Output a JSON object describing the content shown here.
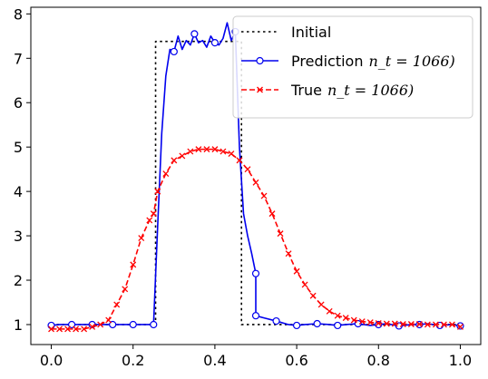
{
  "chart_data": {
    "type": "line",
    "xlim": [
      -0.05,
      1.05
    ],
    "ylim": [
      0.55,
      8.15
    ],
    "x_ticks": [
      0.0,
      0.2,
      0.4,
      0.6,
      0.8,
      1.0
    ],
    "x_tick_labels": [
      "0.0",
      "0.2",
      "0.4",
      "0.6",
      "0.8",
      "1.0"
    ],
    "y_ticks": [
      1,
      2,
      3,
      4,
      5,
      6,
      7,
      8
    ],
    "y_tick_labels": [
      "1",
      "2",
      "3",
      "4",
      "5",
      "6",
      "7",
      "8"
    ],
    "grid": false,
    "legend_position": "top-right",
    "series": [
      {
        "name": "Initial",
        "style": "dotted",
        "color": "#000000",
        "marker": "none",
        "x": [
          0.0,
          0.255,
          0.255,
          0.465,
          0.465,
          1.0
        ],
        "y": [
          1.0,
          1.0,
          7.38,
          7.38,
          1.0,
          1.0
        ]
      },
      {
        "name": "Prediction",
        "name_math": "n_t = 1066)",
        "style": "solid",
        "color": "#0000ee",
        "marker": "circle",
        "x": [
          0.0,
          0.02,
          0.05,
          0.08,
          0.1,
          0.13,
          0.15,
          0.18,
          0.2,
          0.22,
          0.25,
          0.26,
          0.27,
          0.28,
          0.29,
          0.3,
          0.31,
          0.32,
          0.33,
          0.34,
          0.35,
          0.36,
          0.37,
          0.38,
          0.39,
          0.4,
          0.41,
          0.42,
          0.43,
          0.44,
          0.45,
          0.46,
          0.47,
          0.48,
          0.49,
          0.5,
          0.5,
          0.52,
          0.55,
          0.58,
          0.6,
          0.62,
          0.65,
          0.68,
          0.7,
          0.72,
          0.75,
          0.78,
          0.8,
          0.82,
          0.85,
          0.88,
          0.9,
          0.92,
          0.95,
          0.98,
          1.0
        ],
        "y": [
          0.98,
          1.0,
          1.0,
          1.0,
          1.0,
          1.0,
          1.0,
          1.0,
          1.0,
          1.0,
          1.0,
          3.2,
          5.3,
          6.6,
          7.2,
          7.15,
          7.5,
          7.2,
          7.4,
          7.3,
          7.55,
          7.35,
          7.4,
          7.25,
          7.5,
          7.35,
          7.3,
          7.45,
          7.8,
          7.4,
          7.6,
          5.0,
          3.5,
          3.0,
          2.6,
          2.15,
          1.2,
          1.15,
          1.08,
          1.0,
          0.98,
          1.0,
          1.02,
          1.0,
          0.98,
          1.0,
          1.02,
          0.98,
          1.0,
          1.02,
          0.97,
          1.0,
          1.0,
          1.02,
          0.98,
          1.0,
          0.97
        ],
        "markers_at": [
          0.0,
          0.05,
          0.1,
          0.15,
          0.2,
          0.25,
          0.3,
          0.35,
          0.4,
          0.45,
          0.5,
          0.55,
          0.6,
          0.65,
          0.7,
          0.75,
          0.8,
          0.85,
          0.9,
          0.95,
          1.0
        ]
      },
      {
        "name": "True",
        "name_math": "n_t = 1066)",
        "style": "dashed",
        "color": "#ff0000",
        "marker": "x",
        "x": [
          0.0,
          0.02,
          0.04,
          0.06,
          0.08,
          0.1,
          0.12,
          0.14,
          0.16,
          0.18,
          0.2,
          0.22,
          0.24,
          0.25,
          0.26,
          0.28,
          0.3,
          0.32,
          0.34,
          0.36,
          0.38,
          0.4,
          0.42,
          0.44,
          0.46,
          0.48,
          0.5,
          0.52,
          0.54,
          0.56,
          0.58,
          0.6,
          0.62,
          0.64,
          0.66,
          0.68,
          0.7,
          0.72,
          0.74,
          0.76,
          0.78,
          0.8,
          0.82,
          0.84,
          0.86,
          0.88,
          0.9,
          0.92,
          0.94,
          0.96,
          0.98,
          1.0
        ],
        "y": [
          0.9,
          0.9,
          0.9,
          0.9,
          0.9,
          0.95,
          1.0,
          1.1,
          1.45,
          1.8,
          2.35,
          2.95,
          3.35,
          3.5,
          4.0,
          4.4,
          4.7,
          4.8,
          4.9,
          4.95,
          4.95,
          4.95,
          4.9,
          4.85,
          4.7,
          4.5,
          4.2,
          3.9,
          3.5,
          3.05,
          2.6,
          2.2,
          1.9,
          1.65,
          1.45,
          1.3,
          1.2,
          1.15,
          1.1,
          1.07,
          1.05,
          1.03,
          1.02,
          1.02,
          1.01,
          1.01,
          1.01,
          1.0,
          1.0,
          1.0,
          1.0,
          0.95
        ]
      }
    ]
  }
}
